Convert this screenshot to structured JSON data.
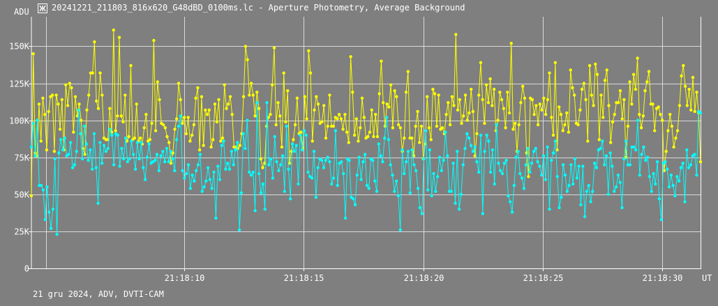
{
  "window": {
    "title": "20241221_211803_816x620_G48dBD_0100ms.lc - Aperture Photometry, Average Background",
    "footer": "21 gru 2024, ADV, DVTI-CAM"
  },
  "colors": {
    "background": "#7f7f7f",
    "grid": "#d9d9d9",
    "axis": "#ffffff",
    "series_yellow": "#ffff00",
    "series_cyan": "#00ffff"
  },
  "chart_data": {
    "type": "line",
    "ylabel": "ADU",
    "xlabel": "UT",
    "ylim": [
      0,
      170000
    ],
    "xlim": [
      "21:18:03.6",
      "21:18:31.6"
    ],
    "y_ticks": [
      {
        "value": 0,
        "label": "0"
      },
      {
        "value": 25000,
        "label": "25K"
      },
      {
        "value": 50000,
        "label": "50K"
      },
      {
        "value": 75000,
        "label": "75K"
      },
      {
        "value": 100000,
        "label": "100K"
      },
      {
        "value": 125000,
        "label": "125K"
      },
      {
        "value": 150000,
        "label": "150K"
      }
    ],
    "x_ticks": [
      {
        "value": "21:18:10",
        "label": "21:18:10"
      },
      {
        "value": "21:18:15",
        "label": "21:18:15"
      },
      {
        "value": "21:18:20",
        "label": "21:18:20"
      },
      {
        "value": "21:18:25",
        "label": "21:18:25"
      },
      {
        "value": "21:18:30",
        "label": "21:18:30"
      }
    ],
    "x_unlabeled_gridlines": [
      "21:18:04.2"
    ],
    "grid": true,
    "series": [
      {
        "color": "#ffff00",
        "values": [
          49000,
          145000,
          78000,
          76000,
          111000,
          86000,
          115000,
          104000,
          80000,
          106000,
          116000,
          117000,
          79000,
          117000,
          111000,
          94000,
          114000,
          80000,
          124000,
          110000,
          125000,
          122000,
          92000,
          116000,
          103000,
          111000,
          100000,
          81000,
          77000,
          107000,
          117000,
          132000,
          132000,
          153000,
          113000,
          108000,
          132000,
          117000,
          88000,
          87000,
          87000,
          108000,
          92000,
          161000,
          93000,
          103000,
          156000,
          103000,
          99000,
          117000,
          86000,
          89000,
          137000,
          87000,
          88000,
          111000,
          86000,
          88000,
          84000,
          95000,
          104000,
          86000,
          87000,
          98000,
          154000,
          93000,
          126000,
          114000,
          98000,
          97000,
          95000,
          89000,
          85000,
          71000,
          78000,
          94000,
          101000,
          125000,
          114000,
          98000,
          102000,
          91000,
          102000,
          86000,
          90000,
          97000,
          115000,
          122000,
          80000,
          116000,
          83000,
          107000,
          104000,
          107000,
          82000,
          87000,
          111000,
          99000,
          114000,
          86000,
          88000,
          124000,
          108000,
          111000,
          116000,
          104000,
          82000,
          82000,
          81000,
          83000,
          91000,
          116000,
          150000,
          141000,
          117000,
          125000,
          117000,
          103000,
          119000,
          108000,
          74000,
          68000,
          71000,
          96000,
          102000,
          104000,
          124000,
          149000,
          97000,
          112000,
          103000,
          82000,
          132000,
          99000,
          120000,
          71000,
          79000,
          87000,
          97000,
          115000,
          91000,
          92000,
          81000,
          116000,
          101000,
          147000,
          132000,
          86000,
          107000,
          116000,
          111000,
          98000,
          99000,
          110000,
          88000,
          96000,
          117000,
          96000,
          96000,
          102000,
          101000,
          104000,
          101000,
          94000,
          104000,
          92000,
          85000,
          143000,
          119000,
          90000,
          101000,
          86000,
          95000,
          115000,
          102000,
          88000,
          89000,
          92000,
          107000,
          89000,
          104000,
          89000,
          118000,
          140000,
          112000,
          96000,
          111000,
          109000,
          124000,
          95000,
          120000,
          116000,
          97000,
          95000,
          79000,
          88000,
          119000,
          133000,
          88000,
          88000,
          76000,
          96000,
          106000,
          85000,
          96000,
          74000,
          84000,
          116000,
          95000,
          87000,
          121000,
          118000,
          96000,
          117000,
          94000,
          95000,
          91000,
          104000,
          112000,
          97000,
          116000,
          110000,
          158000,
          107000,
          114000,
          98000,
          103000,
          117000,
          100000,
          105000,
          121000,
          106000,
          76000,
          91000,
          117000,
          139000,
          114000,
          98000,
          124000,
          112000,
          128000,
          110000,
          121000,
          93000,
          100000,
          119000,
          114000,
          108000,
          95000,
          119000,
          105000,
          152000,
          94000,
          98000,
          79000,
          97000,
          112000,
          123000,
          115000,
          78000,
          62000,
          115000,
          114000,
          104000,
          110000,
          97000,
          111000,
          107000,
          115000,
          104000,
          114000,
          132000,
          102000,
          90000,
          139000,
          80000,
          109000,
          104000,
          93000,
          97000,
          105000,
          92000,
          134000,
          122000,
          117000,
          98000,
          97000,
          107000,
          121000,
          125000,
          114000,
          86000,
          137000,
          117000,
          110000,
          138000,
          131000,
          87000,
          117000,
          102000,
          127000,
          134000,
          110000,
          85000,
          99000,
          104000,
          112000,
          112000,
          120000,
          101000,
          114000,
          75000,
          96000,
          126000,
          111000,
          131000,
          121000,
          142000,
          104000,
          95000,
          103000,
          120000,
          126000,
          133000,
          111000,
          111000,
          93000,
          108000,
          109000,
          104000,
          100000,
          66000,
          79000,
          93000,
          104000,
          96000,
          82000,
          88000,
          93000,
          110000,
          130000,
          137000,
          123000,
          110000,
          121000,
          107000,
          129000,
          106000,
          119000,
          105000,
          72000
        ],
        "x_start": "21:18:03.6",
        "x_end": "21:18:31.6"
      },
      {
        "color": "#00ffff",
        "values": [
          82000,
          98000,
          76000,
          100000,
          56000,
          56000,
          53000,
          33000,
          55000,
          38000,
          27000,
          40000,
          74000,
          23000,
          78000,
          87000,
          80000,
          88000,
          76000,
          77000,
          85000,
          68000,
          70000,
          79000,
          107000,
          91000,
          74000,
          96000,
          84000,
          73000,
          80000,
          67000,
          91000,
          68000,
          44000,
          85000,
          71000,
          83000,
          79000,
          81000,
          94000,
          90000,
          70000,
          91000,
          90000,
          69000,
          81000,
          74000,
          88000,
          72000,
          74000,
          86000,
          77000,
          67000,
          85000,
          74000,
          85000,
          68000,
          60000,
          75000,
          84000,
          71000,
          72000,
          73000,
          77000,
          66000,
          76000,
          79000,
          72000,
          81000,
          72000,
          79000,
          74000,
          66000,
          87000,
          96000,
          103000,
          66000,
          61000,
          64000,
          70000,
          54000,
          63000,
          59000,
          66000,
          70000,
          77000,
          52000,
          55000,
          59000,
          68000,
          60000,
          54000,
          65000,
          34000,
          69000,
          60000,
          83000,
          86000,
          67000,
          71000,
          67000,
          79000,
          70000,
          80000,
          85000,
          26000,
          51000,
          91000,
          81000,
          100000,
          65000,
          63000,
          65000,
          39000,
          112000,
          64000,
          51000,
          57000,
          40000,
          112000,
          70000,
          74000,
          61000,
          89000,
          72000,
          66000,
          70000,
          76000,
          52000,
          96000,
          67000,
          47000,
          84000,
          79000,
          83000,
          57000,
          90000,
          80000,
          93000,
          90000,
          65000,
          62000,
          61000,
          79000,
          48000,
          68000,
          74000,
          73000,
          68000,
          73000,
          75000,
          72000,
          57000,
          61000,
          93000,
          56000,
          71000,
          72000,
          64000,
          34000,
          74000,
          73000,
          48000,
          47000,
          43000,
          63000,
          75000,
          60000,
          72000,
          77000,
          56000,
          54000,
          74000,
          73000,
          59000,
          52000,
          84000,
          76000,
          72000,
          88000,
          102000,
          87000,
          70000,
          63000,
          52000,
          59000,
          49000,
          26000,
          80000,
          64000,
          72000,
          79000,
          51000,
          80000,
          70000,
          66000,
          54000,
          41000,
          37000,
          74000,
          93000,
          53000,
          80000,
          49000,
          64000,
          52000,
          62000,
          75000,
          66000,
          73000,
          92000,
          76000,
          52000,
          52000,
          71000,
          44000,
          79000,
          40000,
          50000,
          70000,
          81000,
          91000,
          88000,
          83000,
          79000,
          82000,
          72000,
          65000,
          90000,
          37000,
          79000,
          90000,
          86000,
          65000,
          80000,
          57000,
          97000,
          71000,
          66000,
          64000,
          71000,
          73000,
          49000,
          45000,
          38000,
          56000,
          75000,
          79000,
          64000,
          61000,
          54000,
          70000,
          81000,
          65000,
          71000,
          79000,
          81000,
          72000,
          69000,
          63000,
          76000,
          60000,
          82000,
          40000,
          73000,
          78000,
          86000,
          62000,
          41000,
          48000,
          70000,
          63000,
          52000,
          56000,
          70000,
          57000,
          74000,
          61000,
          69000,
          43000,
          69000,
          35000,
          52000,
          56000,
          45000,
          52000,
          71000,
          68000,
          80000,
          81000,
          86000,
          70000,
          76000,
          50000,
          78000,
          69000,
          52000,
          55000,
          63000,
          58000,
          41000,
          74000,
          86000,
          70000,
          70000,
          82000,
          82000,
          80000,
          100000,
          63000,
          77000,
          82000,
          73000,
          75000,
          62000,
          52000,
          64000,
          57000,
          72000,
          47000,
          33000,
          71000,
          72000,
          67000,
          55000,
          63000,
          56000,
          49000,
          62000,
          59000,
          68000,
          71000,
          45000,
          80000,
          68000,
          70000,
          76000,
          77000,
          63000,
          106000,
          105000
        ]
      }
    ]
  }
}
